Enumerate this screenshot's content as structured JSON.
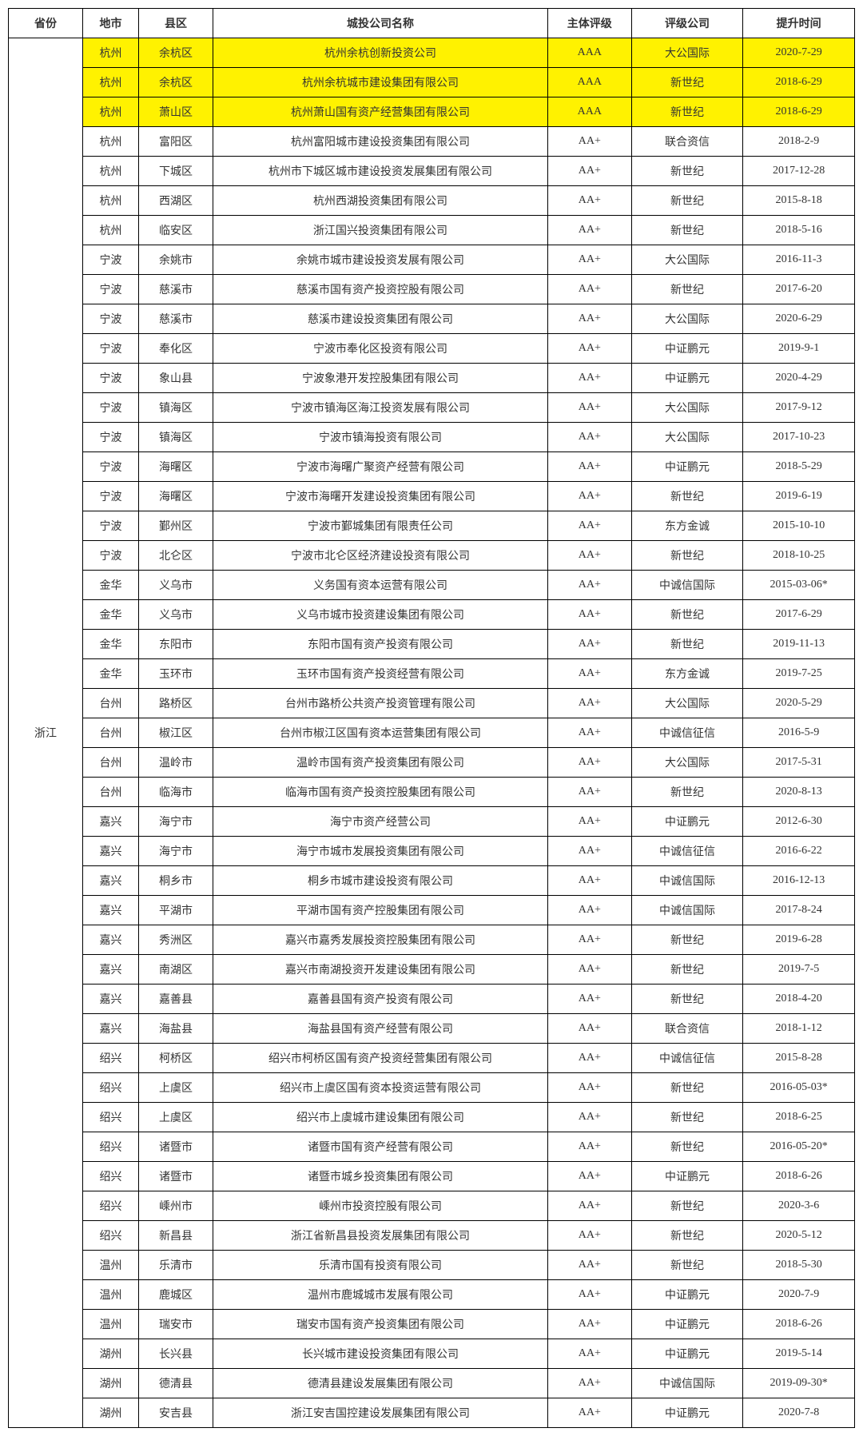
{
  "headers": {
    "province": "省份",
    "city": "地市",
    "district": "县区",
    "company": "城投公司名称",
    "rating": "主体评级",
    "agency": "评级公司",
    "date": "提升时间"
  },
  "province": "浙江",
  "highlight_color": "#fff200",
  "border_color": "#000000",
  "font_size": 14,
  "rows": [
    {
      "city": "杭州",
      "district": "余杭区",
      "company": "杭州余杭创新投资公司",
      "rating": "AAA",
      "agency": "大公国际",
      "date": "2020-7-29",
      "highlight": true
    },
    {
      "city": "杭州",
      "district": "余杭区",
      "company": "杭州余杭城市建设集团有限公司",
      "rating": "AAA",
      "agency": "新世纪",
      "date": "2018-6-29",
      "highlight": true
    },
    {
      "city": "杭州",
      "district": "萧山区",
      "company": "杭州萧山国有资产经营集团有限公司",
      "rating": "AAA",
      "agency": "新世纪",
      "date": "2018-6-29",
      "highlight": true
    },
    {
      "city": "杭州",
      "district": "富阳区",
      "company": "杭州富阳城市建设投资集团有限公司",
      "rating": "AA+",
      "agency": "联合资信",
      "date": "2018-2-9"
    },
    {
      "city": "杭州",
      "district": "下城区",
      "company": "杭州市下城区城市建设投资发展集团有限公司",
      "rating": "AA+",
      "agency": "新世纪",
      "date": "2017-12-28"
    },
    {
      "city": "杭州",
      "district": "西湖区",
      "company": "杭州西湖投资集团有限公司",
      "rating": "AA+",
      "agency": "新世纪",
      "date": "2015-8-18"
    },
    {
      "city": "杭州",
      "district": "临安区",
      "company": "浙江国兴投资集团有限公司",
      "rating": "AA+",
      "agency": "新世纪",
      "date": "2018-5-16"
    },
    {
      "city": "宁波",
      "district": "余姚市",
      "company": "余姚市城市建设投资发展有限公司",
      "rating": "AA+",
      "agency": "大公国际",
      "date": "2016-11-3"
    },
    {
      "city": "宁波",
      "district": "慈溪市",
      "company": "慈溪市国有资产投资控股有限公司",
      "rating": "AA+",
      "agency": "新世纪",
      "date": "2017-6-20"
    },
    {
      "city": "宁波",
      "district": "慈溪市",
      "company": "慈溪市建设投资集团有限公司",
      "rating": "AA+",
      "agency": "大公国际",
      "date": "2020-6-29"
    },
    {
      "city": "宁波",
      "district": "奉化区",
      "company": "宁波市奉化区投资有限公司",
      "rating": "AA+",
      "agency": "中证鹏元",
      "date": "2019-9-1"
    },
    {
      "city": "宁波",
      "district": "象山县",
      "company": "宁波象港开发控股集团有限公司",
      "rating": "AA+",
      "agency": "中证鹏元",
      "date": "2020-4-29"
    },
    {
      "city": "宁波",
      "district": "镇海区",
      "company": "宁波市镇海区海江投资发展有限公司",
      "rating": "AA+",
      "agency": "大公国际",
      "date": "2017-9-12"
    },
    {
      "city": "宁波",
      "district": "镇海区",
      "company": "宁波市镇海投资有限公司",
      "rating": "AA+",
      "agency": "大公国际",
      "date": "2017-10-23"
    },
    {
      "city": "宁波",
      "district": "海曙区",
      "company": "宁波市海曙广聚资产经营有限公司",
      "rating": "AA+",
      "agency": "中证鹏元",
      "date": "2018-5-29"
    },
    {
      "city": "宁波",
      "district": "海曙区",
      "company": "宁波市海曙开发建设投资集团有限公司",
      "rating": "AA+",
      "agency": "新世纪",
      "date": "2019-6-19"
    },
    {
      "city": "宁波",
      "district": "鄞州区",
      "company": "宁波市鄞城集团有限责任公司",
      "rating": "AA+",
      "agency": "东方金诚",
      "date": "2015-10-10"
    },
    {
      "city": "宁波",
      "district": "北仑区",
      "company": "宁波市北仑区经济建设投资有限公司",
      "rating": "AA+",
      "agency": "新世纪",
      "date": "2018-10-25"
    },
    {
      "city": "金华",
      "district": "义乌市",
      "company": "义务国有资本运营有限公司",
      "rating": "AA+",
      "agency": "中诚信国际",
      "date": "2015-03-06*"
    },
    {
      "city": "金华",
      "district": "义乌市",
      "company": "义乌市城市投资建设集团有限公司",
      "rating": "AA+",
      "agency": "新世纪",
      "date": "2017-6-29"
    },
    {
      "city": "金华",
      "district": "东阳市",
      "company": "东阳市国有资产投资有限公司",
      "rating": "AA+",
      "agency": "新世纪",
      "date": "2019-11-13"
    },
    {
      "city": "金华",
      "district": "玉环市",
      "company": "玉环市国有资产投资经营有限公司",
      "rating": "AA+",
      "agency": "东方金诚",
      "date": "2019-7-25"
    },
    {
      "city": "台州",
      "district": "路桥区",
      "company": "台州市路桥公共资产投资管理有限公司",
      "rating": "AA+",
      "agency": "大公国际",
      "date": "2020-5-29"
    },
    {
      "city": "台州",
      "district": "椒江区",
      "company": "台州市椒江区国有资本运营集团有限公司",
      "rating": "AA+",
      "agency": "中诚信征信",
      "date": "2016-5-9"
    },
    {
      "city": "台州",
      "district": "温岭市",
      "company": "温岭市国有资产投资集团有限公司",
      "rating": "AA+",
      "agency": "大公国际",
      "date": "2017-5-31"
    },
    {
      "city": "台州",
      "district": "临海市",
      "company": "临海市国有资产投资控股集团有限公司",
      "rating": "AA+",
      "agency": "新世纪",
      "date": "2020-8-13"
    },
    {
      "city": "嘉兴",
      "district": "海宁市",
      "company": "海宁市资产经营公司",
      "rating": "AA+",
      "agency": "中证鹏元",
      "date": "2012-6-30"
    },
    {
      "city": "嘉兴",
      "district": "海宁市",
      "company": "海宁市城市发展投资集团有限公司",
      "rating": "AA+",
      "agency": "中诚信征信",
      "date": "2016-6-22"
    },
    {
      "city": "嘉兴",
      "district": "桐乡市",
      "company": "桐乡市城市建设投资有限公司",
      "rating": "AA+",
      "agency": "中诚信国际",
      "date": "2016-12-13"
    },
    {
      "city": "嘉兴",
      "district": "平湖市",
      "company": "平湖市国有资产控股集团有限公司",
      "rating": "AA+",
      "agency": "中诚信国际",
      "date": "2017-8-24"
    },
    {
      "city": "嘉兴",
      "district": "秀洲区",
      "company": "嘉兴市嘉秀发展投资控股集团有限公司",
      "rating": "AA+",
      "agency": "新世纪",
      "date": "2019-6-28"
    },
    {
      "city": "嘉兴",
      "district": "南湖区",
      "company": "嘉兴市南湖投资开发建设集团有限公司",
      "rating": "AA+",
      "agency": "新世纪",
      "date": "2019-7-5"
    },
    {
      "city": "嘉兴",
      "district": "嘉善县",
      "company": "嘉善县国有资产投资有限公司",
      "rating": "AA+",
      "agency": "新世纪",
      "date": "2018-4-20"
    },
    {
      "city": "嘉兴",
      "district": "海盐县",
      "company": "海盐县国有资产经营有限公司",
      "rating": "AA+",
      "agency": "联合资信",
      "date": "2018-1-12"
    },
    {
      "city": "绍兴",
      "district": "柯桥区",
      "company": "绍兴市柯桥区国有资产投资经营集团有限公司",
      "rating": "AA+",
      "agency": "中诚信征信",
      "date": "2015-8-28"
    },
    {
      "city": "绍兴",
      "district": "上虞区",
      "company": "绍兴市上虞区国有资本投资运营有限公司",
      "rating": "AA+",
      "agency": "新世纪",
      "date": "2016-05-03*"
    },
    {
      "city": "绍兴",
      "district": "上虞区",
      "company": "绍兴市上虞城市建设集团有限公司",
      "rating": "AA+",
      "agency": "新世纪",
      "date": "2018-6-25"
    },
    {
      "city": "绍兴",
      "district": "诸暨市",
      "company": "诸暨市国有资产经营有限公司",
      "rating": "AA+",
      "agency": "新世纪",
      "date": "2016-05-20*"
    },
    {
      "city": "绍兴",
      "district": "诸暨市",
      "company": "诸暨市城乡投资集团有限公司",
      "rating": "AA+",
      "agency": "中证鹏元",
      "date": "2018-6-26"
    },
    {
      "city": "绍兴",
      "district": "嵊州市",
      "company": "嵊州市投资控股有限公司",
      "rating": "AA+",
      "agency": "新世纪",
      "date": "2020-3-6"
    },
    {
      "city": "绍兴",
      "district": "新昌县",
      "company": "浙江省新昌县投资发展集团有限公司",
      "rating": "AA+",
      "agency": "新世纪",
      "date": "2020-5-12"
    },
    {
      "city": "温州",
      "district": "乐清市",
      "company": "乐清市国有投资有限公司",
      "rating": "AA+",
      "agency": "新世纪",
      "date": "2018-5-30"
    },
    {
      "city": "温州",
      "district": "鹿城区",
      "company": "温州市鹿城城市发展有限公司",
      "rating": "AA+",
      "agency": "中证鹏元",
      "date": "2020-7-9"
    },
    {
      "city": "温州",
      "district": "瑞安市",
      "company": "瑞安市国有资产投资集团有限公司",
      "rating": "AA+",
      "agency": "中证鹏元",
      "date": "2018-6-26"
    },
    {
      "city": "湖州",
      "district": "长兴县",
      "company": "长兴城市建设投资集团有限公司",
      "rating": "AA+",
      "agency": "中证鹏元",
      "date": "2019-5-14"
    },
    {
      "city": "湖州",
      "district": "德清县",
      "company": "德清县建设发展集团有限公司",
      "rating": "AA+",
      "agency": "中诚信国际",
      "date": "2019-09-30*"
    },
    {
      "city": "湖州",
      "district": "安吉县",
      "company": "浙江安吉国控建设发展集团有限公司",
      "rating": "AA+",
      "agency": "中证鹏元",
      "date": "2020-7-8"
    }
  ]
}
